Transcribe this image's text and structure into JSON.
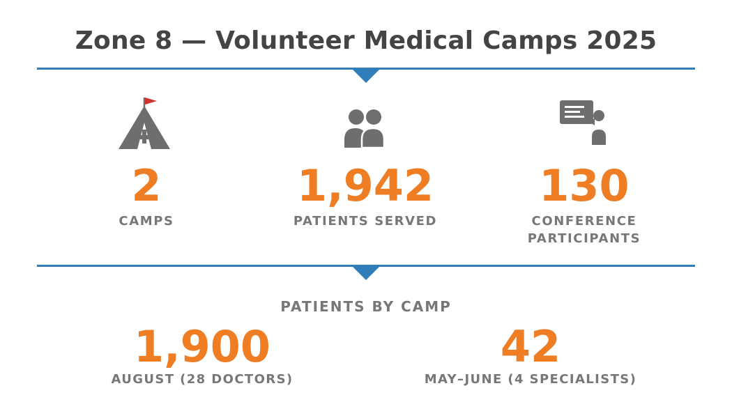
{
  "title": "Zone 8 — Volunteer Medical Camps 2025",
  "colors": {
    "accent": "#ee7d23",
    "divider": "#2f7db9",
    "text": "#444444",
    "label": "#777777",
    "icon": "#6e6e6e",
    "flag": "#d0322b"
  },
  "stats": [
    {
      "icon": "tent-icon",
      "value": "2",
      "label": "CAMPS"
    },
    {
      "icon": "people-icon",
      "value": "1,942",
      "label": "PATIENTS SERVED"
    },
    {
      "icon": "presenter-icon",
      "value": "130",
      "label": "CONFERENCE PARTICIPANTS"
    }
  ],
  "patients_by_camp": {
    "title": "PATIENTS BY CAMP",
    "camps": [
      {
        "value": "1,900",
        "label": "AUGUST (28 DOCTORS)"
      },
      {
        "value": "42",
        "label": "MAY–JUNE (4 SPECIALISTS)"
      }
    ]
  }
}
